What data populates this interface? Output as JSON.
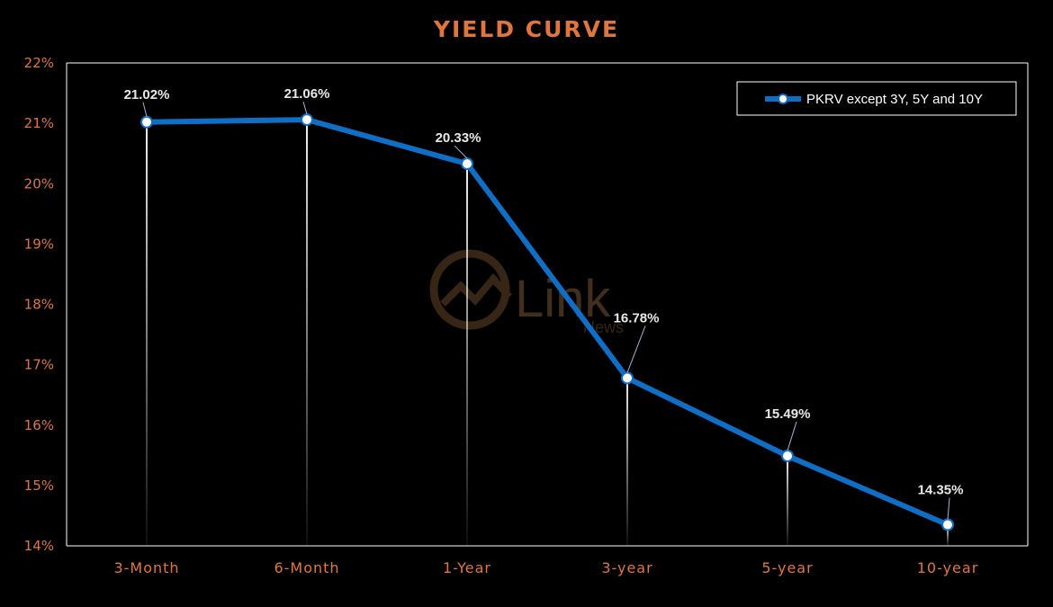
{
  "chart_data": {
    "type": "line",
    "title": "YIELD CURVE",
    "categories": [
      "3-Month",
      "6-Month",
      "1-Year",
      "3-year",
      "5-year",
      "10-year"
    ],
    "series": [
      {
        "name": "PKRV except 3Y, 5Y and 10Y",
        "values": [
          21.02,
          21.06,
          20.33,
          16.78,
          15.49,
          14.35
        ],
        "labels": [
          "21.02%",
          "21.06%",
          "20.33%",
          "16.78%",
          "15.49%",
          "14.35%"
        ],
        "color": "#0F6FC6"
      }
    ],
    "ylim": [
      14,
      22
    ],
    "yticks": [
      "14%",
      "15%",
      "16%",
      "17%",
      "18%",
      "19%",
      "20%",
      "21%",
      "22%"
    ],
    "xlabel": "",
    "ylabel": "",
    "grid": false,
    "legend_position": "top-right",
    "drop_lines": true
  },
  "watermark": {
    "text": "Link",
    "sub": "News"
  },
  "colors": {
    "background": "#000000",
    "accent": "#E0763C",
    "line": "#0F6FC6",
    "text": "#E8E8E8"
  }
}
